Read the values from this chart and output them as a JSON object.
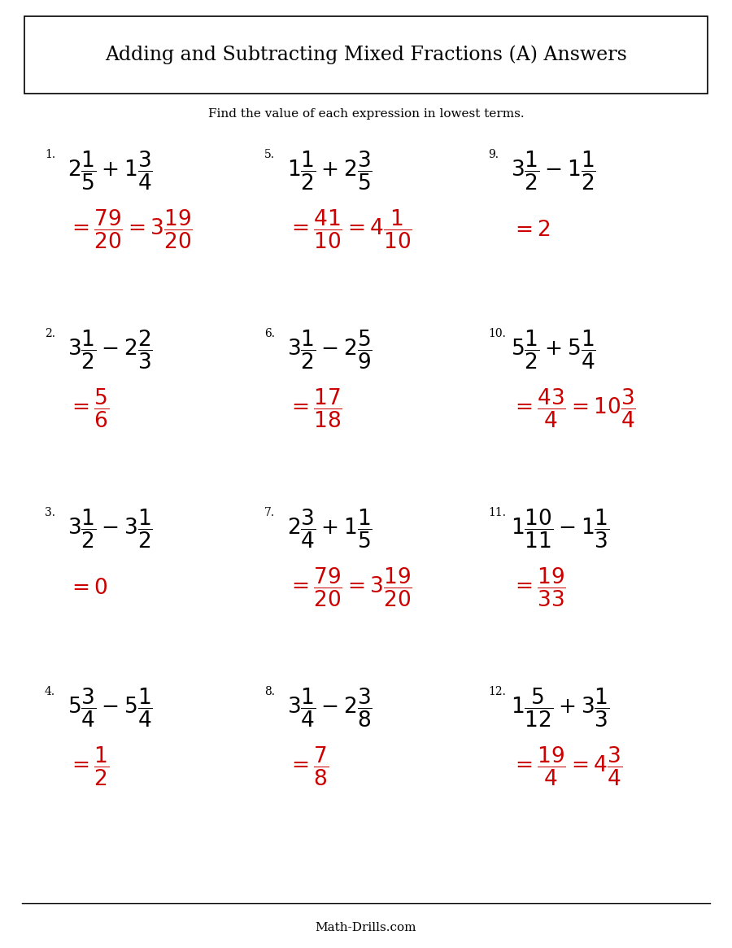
{
  "title": "Adding and Subtracting Mixed Fractions (A) Answers",
  "subtitle": "Find the value of each expression in lowest terms.",
  "bg_color": "#ffffff",
  "text_color": "#000000",
  "answer_color": "#cc0000",
  "footer": "Math-Drills.com",
  "problems": [
    {
      "num": "1.",
      "question": "$2\\dfrac{1}{5} + 1\\dfrac{3}{4}$",
      "answer_line1": "$= \\dfrac{79}{20} = 3\\dfrac{19}{20}$"
    },
    {
      "num": "2.",
      "question": "$3\\dfrac{1}{2} - 2\\dfrac{2}{3}$",
      "answer_line1": "$= \\dfrac{5}{6}$"
    },
    {
      "num": "3.",
      "question": "$3\\dfrac{1}{2} - 3\\dfrac{1}{2}$",
      "answer_line1": "$= 0$"
    },
    {
      "num": "4.",
      "question": "$5\\dfrac{3}{4} - 5\\dfrac{1}{4}$",
      "answer_line1": "$= \\dfrac{1}{2}$"
    },
    {
      "num": "5.",
      "question": "$1\\dfrac{1}{2} + 2\\dfrac{3}{5}$",
      "answer_line1": "$= \\dfrac{41}{10} = 4\\dfrac{1}{10}$"
    },
    {
      "num": "6.",
      "question": "$3\\dfrac{1}{2} - 2\\dfrac{5}{9}$",
      "answer_line1": "$= \\dfrac{17}{18}$"
    },
    {
      "num": "7.",
      "question": "$2\\dfrac{3}{4} + 1\\dfrac{1}{5}$",
      "answer_line1": "$= \\dfrac{79}{20} = 3\\dfrac{19}{20}$"
    },
    {
      "num": "8.",
      "question": "$3\\dfrac{1}{4} - 2\\dfrac{3}{8}$",
      "answer_line1": "$= \\dfrac{7}{8}$"
    },
    {
      "num": "9.",
      "question": "$3\\dfrac{1}{2} - 1\\dfrac{1}{2}$",
      "answer_line1": "$= 2$"
    },
    {
      "num": "10.",
      "question": "$5\\dfrac{1}{2} + 5\\dfrac{1}{4}$",
      "answer_line1": "$= \\dfrac{43}{4} = 10\\dfrac{3}{4}$"
    },
    {
      "num": "11.",
      "question": "$1\\dfrac{10}{11} - 1\\dfrac{1}{3}$",
      "answer_line1": "$= \\dfrac{19}{33}$"
    },
    {
      "num": "12.",
      "question": "$1\\dfrac{5}{12} + 3\\dfrac{1}{3}$",
      "answer_line1": "$= \\dfrac{19}{4} = 4\\dfrac{3}{4}$"
    }
  ]
}
